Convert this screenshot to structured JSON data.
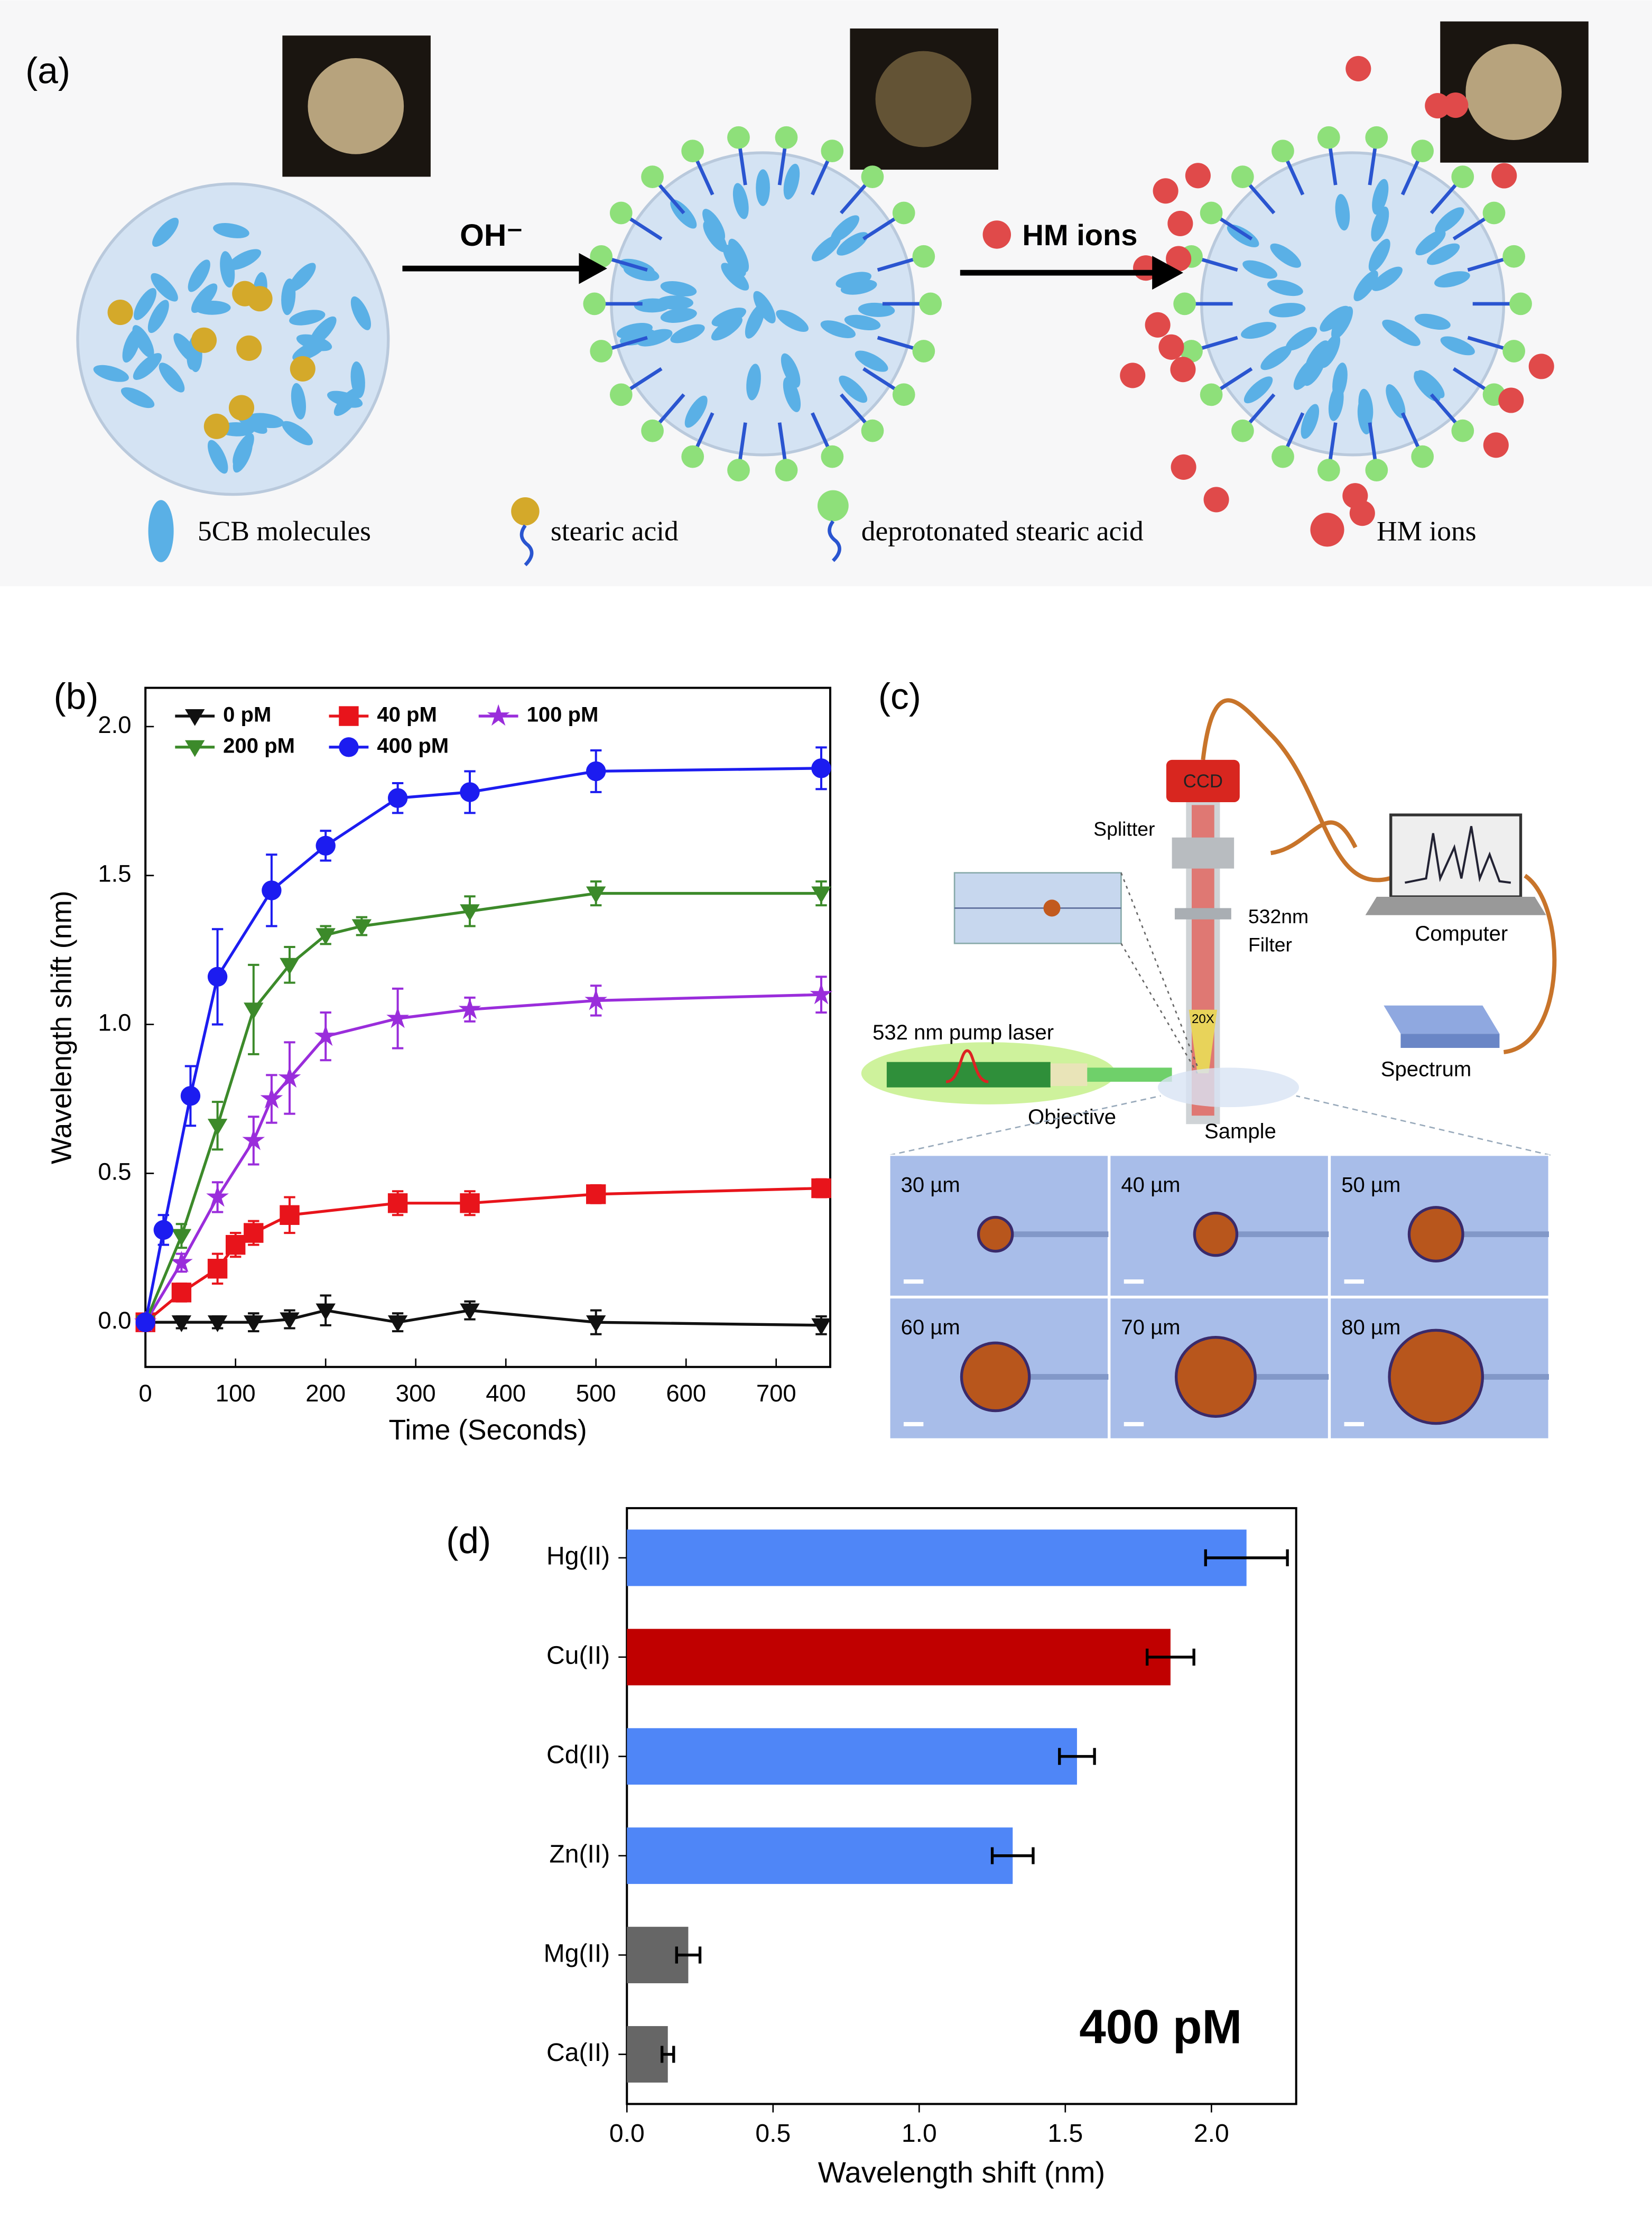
{
  "panel_a": {
    "label": "(a)",
    "arrow_1": "OH⁻",
    "arrow_2": "HM ions",
    "legend": [
      "5CB molecules",
      "stearic acid",
      "deprotonated stearic acid",
      "HM ions"
    ]
  },
  "panel_c": {
    "label": "(c)",
    "ccd": "CCD",
    "splitter": "Splitter",
    "filter": [
      "532nm",
      "Filter"
    ],
    "objective_mag": "20X",
    "computer": "Computer",
    "spectrum": "Spectrum",
    "pump_laser": "532 nm pump laser",
    "objective": "Objective",
    "sample": "Sample",
    "sizes": [
      "30 µm",
      "40 µm",
      "50 µm",
      "60 µm",
      "70 µm",
      "80 µm"
    ]
  },
  "chart_data": [
    {
      "type": "line",
      "panel_label": "(b)",
      "x_label": "Time (Seconds)",
      "y_label": "Wavelength shift (nm)",
      "xlim": [
        0,
        760
      ],
      "ylim": [
        -0.15,
        2.13
      ],
      "xticks": [
        0,
        100,
        200,
        300,
        400,
        500,
        600,
        700
      ],
      "yticks": [
        {
          "value": 0,
          "label": "0.0"
        },
        {
          "value": 0.5,
          "label": "0.5"
        },
        {
          "value": 1,
          "label": "1.0"
        },
        {
          "value": 1.5,
          "label": "1.5"
        },
        {
          "value": 2,
          "label": "2.0"
        }
      ],
      "legend": "upper left",
      "series": [
        {
          "name": "0 pM",
          "color": "#111111",
          "marker": "triangle-down",
          "x": [
            0,
            40,
            80,
            120,
            160,
            200,
            280,
            360,
            500,
            750
          ],
          "values": [
            0,
            0,
            0,
            0,
            0.01,
            0.04,
            0,
            0.04,
            0,
            -0.01
          ],
          "errors": [
            0,
            0.02,
            0.02,
            0.03,
            0.03,
            0.05,
            0.03,
            0.03,
            0.04,
            0.03
          ]
        },
        {
          "name": "40 pM",
          "color": "#e8141b",
          "marker": "square",
          "x": [
            0,
            40,
            80,
            100,
            120,
            160,
            280,
            360,
            500,
            750
          ],
          "values": [
            0,
            0.1,
            0.18,
            0.26,
            0.3,
            0.36,
            0.4,
            0.4,
            0.43,
            0.45
          ],
          "errors": [
            0,
            0.03,
            0.05,
            0.04,
            0.04,
            0.06,
            0.04,
            0.04,
            0.03,
            0.03
          ]
        },
        {
          "name": "100 pM",
          "color": "#9a2ddb",
          "marker": "star",
          "x": [
            0,
            40,
            80,
            120,
            140,
            160,
            200,
            280,
            360,
            500,
            750
          ],
          "values": [
            0,
            0.2,
            0.42,
            0.61,
            0.75,
            0.82,
            0.96,
            1.02,
            1.05,
            1.08,
            1.1
          ],
          "errors": [
            0,
            0.03,
            0.05,
            0.08,
            0.08,
            0.12,
            0.08,
            0.1,
            0.04,
            0.05,
            0.06
          ]
        },
        {
          "name": "200 pM",
          "color": "#3c8a2a",
          "marker": "triangle-down",
          "x": [
            0,
            40,
            80,
            120,
            160,
            200,
            240,
            360,
            500,
            750
          ],
          "values": [
            0,
            0.29,
            0.66,
            1.05,
            1.2,
            1.3,
            1.33,
            1.38,
            1.44,
            1.44
          ],
          "errors": [
            0,
            0.04,
            0.08,
            0.15,
            0.06,
            0.03,
            0.03,
            0.05,
            0.04,
            0.04
          ]
        },
        {
          "name": "400 pM",
          "color": "#1c1cf0",
          "marker": "circle",
          "x": [
            0,
            20,
            50,
            80,
            140,
            200,
            280,
            360,
            500,
            750
          ],
          "values": [
            0,
            0.31,
            0.76,
            1.16,
            1.45,
            1.6,
            1.76,
            1.78,
            1.85,
            1.86
          ],
          "errors": [
            0,
            0.05,
            0.1,
            0.16,
            0.12,
            0.05,
            0.05,
            0.07,
            0.07,
            0.07
          ]
        }
      ]
    },
    {
      "type": "bar",
      "orientation": "horizontal",
      "panel_label": "(d)",
      "x_label": "Wavelength shift (nm)",
      "annotation": "400 pM",
      "categories": [
        "Hg(II)",
        "Cu(II)",
        "Cd(II)",
        "Zn(II)",
        "Mg(II)",
        "Ca(II)"
      ],
      "values": [
        2.12,
        1.86,
        1.54,
        1.32,
        0.21,
        0.14
      ],
      "errors": [
        0.14,
        0.08,
        0.06,
        0.07,
        0.04,
        0.02
      ],
      "colors": [
        "#4f86f7",
        "#c00000",
        "#4f86f7",
        "#4f86f7",
        "#666666",
        "#666666"
      ],
      "xlim": [
        0,
        2.29
      ],
      "xticks": [
        {
          "value": 0,
          "label": "0.0"
        },
        {
          "value": 0.5,
          "label": "0.5"
        },
        {
          "value": 1,
          "label": "1.0"
        },
        {
          "value": 1.5,
          "label": "1.5"
        },
        {
          "value": 2,
          "label": "2.0"
        }
      ]
    }
  ]
}
